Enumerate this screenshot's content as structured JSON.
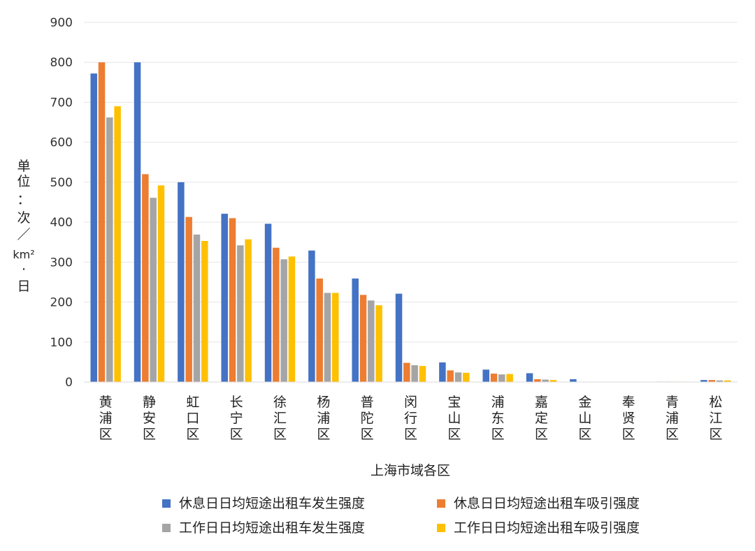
{
  "chart_data": {
    "type": "bar",
    "title": "",
    "xlabel": "上海市域各区",
    "ylabel_lines": [
      "单",
      "位",
      "：",
      "次",
      "／",
      "km²",
      "·",
      "日"
    ],
    "ylim": [
      0,
      900
    ],
    "yticks": [
      "0",
      "100",
      "200",
      "300",
      "400",
      "500",
      "600",
      "700",
      "800",
      "900"
    ],
    "grid": true,
    "legend_position": "bottom",
    "categories": [
      "黄浦区",
      "静安区",
      "虹口区",
      "长宁区",
      "徐汇区",
      "杨浦区",
      "普陀区",
      "闵行区",
      "宝山区",
      "浦东区",
      "嘉定区",
      "金山区",
      "奉贤区",
      "青浦区",
      "松江区"
    ],
    "series": [
      {
        "name": "休息日日均短途出租车发生强度",
        "color": "#4472C4",
        "values": [
          772,
          800,
          500,
          421,
          396,
          329,
          259,
          221,
          49,
          31,
          22,
          7,
          0.5,
          1,
          5
        ]
      },
      {
        "name": "休息日日均短途出租车吸引强度",
        "color": "#ED7D31",
        "values": [
          800,
          520,
          413,
          410,
          336,
          259,
          218,
          48,
          29,
          21,
          7,
          0.5,
          0.5,
          1,
          5
        ]
      },
      {
        "name": "工作日日均短途出租车发生强度",
        "color": "#A5A5A5",
        "values": [
          662,
          461,
          369,
          342,
          307,
          223,
          204,
          42,
          24,
          19,
          6,
          0.5,
          0.5,
          1,
          4
        ]
      },
      {
        "name": "工作日日均短途出租车吸引强度",
        "color": "#FFC000",
        "values": [
          690,
          492,
          353,
          357,
          314,
          223,
          192,
          40,
          23,
          20,
          5,
          0.5,
          0.5,
          1,
          4
        ]
      }
    ]
  }
}
